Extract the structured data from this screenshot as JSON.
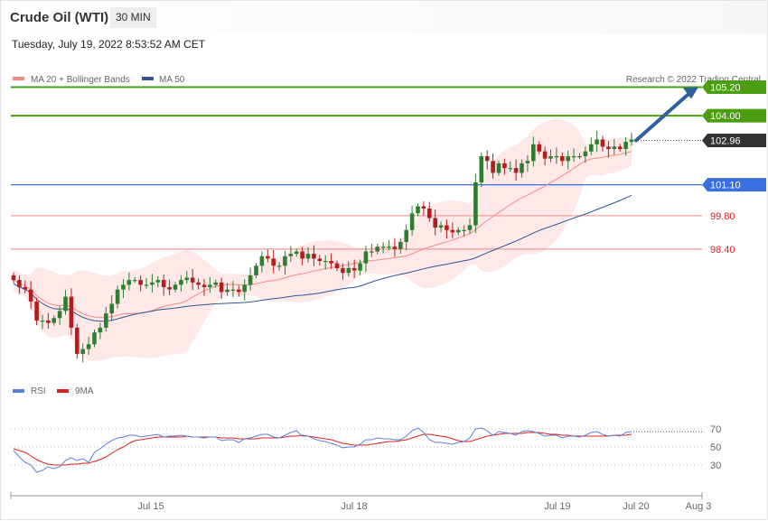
{
  "header": {
    "instrument": "Crude Oil (WTI)",
    "interval": "30 MIN",
    "timestamp": "Tuesday, July 19, 2022 8:53:52 AM CET"
  },
  "legend": {
    "ma20": {
      "label": "MA 20 + Bollinger Bands",
      "color": "#f28b82"
    },
    "ma50": {
      "label": "MA 50",
      "color": "#2f5597"
    },
    "credit": "Research © 2022 Trading Central"
  },
  "rsi_legend": {
    "rsi": {
      "label": "RSI",
      "color": "#5b7fd8"
    },
    "ma9": {
      "label": "9MA",
      "color": "#e02020"
    }
  },
  "colors": {
    "bull": "#2e7d32",
    "bear": "#b71c1c",
    "band_fill": "#fde0e0",
    "resistance": "#4a9e10",
    "pivot": "#3b6fe0",
    "support": "#f4a0a0",
    "last_price_bg": "#333333",
    "arrow": "#2f5f9e"
  },
  "chart_data": [
    {
      "type": "candlestick",
      "title": "Crude Oil (WTI)",
      "interval": "30 MIN",
      "x_axis": {
        "ticks": [
          "Jul 15",
          "Jul 18",
          "Jul 19",
          "Jul 20",
          "Aug 3"
        ]
      },
      "y_range": [
        93.2,
        105.9
      ],
      "levels": [
        {
          "label": "105.20",
          "value": 105.2,
          "kind": "resistance"
        },
        {
          "label": "104.00",
          "value": 104.0,
          "kind": "resistance"
        },
        {
          "label": "102.96",
          "value": 102.96,
          "kind": "last"
        },
        {
          "label": "101.10",
          "value": 101.1,
          "kind": "pivot"
        },
        {
          "label": "99.80",
          "value": 99.8,
          "kind": "support"
        },
        {
          "label": "98.40",
          "value": 98.4,
          "kind": "support"
        }
      ],
      "target_arrow": {
        "from": 102.96,
        "to": 105.2
      },
      "close": [
        97.1,
        96.8,
        96.7,
        96.2,
        95.4,
        95.4,
        95.3,
        95.5,
        95.8,
        96.4,
        95.1,
        94.0,
        94.2,
        94.4,
        94.9,
        95.1,
        95.7,
        96.1,
        96.7,
        96.9,
        97.1,
        97.1,
        96.9,
        96.9,
        97.0,
        97.1,
        96.8,
        96.7,
        96.9,
        97.1,
        97.2,
        97.0,
        96.9,
        96.8,
        96.9,
        97.0,
        96.6,
        96.7,
        96.7,
        96.6,
        96.9,
        97.3,
        97.7,
        98.1,
        98.0,
        97.7,
        97.7,
        98.1,
        98.2,
        98.3,
        98.0,
        98.2,
        98.0,
        97.9,
        97.9,
        97.8,
        97.6,
        97.4,
        97.6,
        97.5,
        97.8,
        98.3,
        98.3,
        98.5,
        98.5,
        98.5,
        98.4,
        98.7,
        99.2,
        99.9,
        100.2,
        100.1,
        99.7,
        99.3,
        99.4,
        99.2,
        99.1,
        99.2,
        99.2,
        99.4,
        101.2,
        102.3,
        102.1,
        101.6,
        102.0,
        101.8,
        101.8,
        101.6,
        102.0,
        102.1,
        102.8,
        102.5,
        102.2,
        102.3,
        102.3,
        102.1,
        102.3,
        102.3,
        102.3,
        102.5,
        102.8,
        103.0,
        102.7,
        102.6,
        102.7,
        102.6,
        102.9,
        103.0
      ]
    },
    {
      "type": "line",
      "title": "RSI",
      "y_ticks": [
        70,
        50,
        30
      ],
      "ylim": [
        0,
        100
      ],
      "series": [
        {
          "name": "RSI",
          "values": [
            46,
            39,
            33,
            30,
            22,
            24,
            28,
            26,
            28,
            35,
            38,
            35,
            37,
            33,
            44,
            48,
            53,
            57,
            60,
            61,
            63,
            63,
            61,
            62,
            63,
            64,
            61,
            62,
            62,
            63,
            62,
            61,
            61,
            60,
            61,
            61,
            57,
            58,
            58,
            55,
            59,
            60,
            62,
            64,
            64,
            61,
            60,
            63,
            66,
            68,
            62,
            62,
            59,
            57,
            56,
            54,
            52,
            49,
            50,
            50,
            53,
            58,
            58,
            60,
            59,
            59,
            58,
            58,
            62,
            68,
            71,
            66,
            58,
            55,
            55,
            54,
            53,
            55,
            56,
            60,
            70,
            71,
            68,
            63,
            67,
            66,
            65,
            63,
            67,
            68,
            67,
            65,
            62,
            63,
            63,
            60,
            62,
            62,
            61,
            63,
            66,
            67,
            64,
            62,
            63,
            62,
            66,
            67
          ]
        },
        {
          "name": "9MA",
          "values": [
            48,
            46,
            44,
            40,
            36,
            33,
            31,
            30,
            30,
            30,
            31,
            31,
            32,
            32,
            34,
            36,
            39,
            43,
            47,
            50,
            54,
            57,
            58,
            59,
            60,
            61,
            61,
            61,
            61,
            61,
            62,
            61,
            61,
            61,
            61,
            61,
            60,
            60,
            60,
            59,
            59,
            59,
            59,
            60,
            60,
            60,
            60,
            61,
            62,
            62,
            63,
            62,
            61,
            60,
            59,
            58,
            56,
            54,
            53,
            52,
            52,
            52,
            53,
            54,
            55,
            56,
            56,
            57,
            58,
            60,
            62,
            64,
            64,
            63,
            62,
            61,
            59,
            57,
            56,
            56,
            58,
            60,
            62,
            63,
            64,
            65,
            65,
            65,
            65,
            66,
            66,
            66,
            65,
            64,
            64,
            63,
            63,
            62,
            62,
            62,
            62,
            62,
            62,
            62,
            63,
            63,
            63,
            64
          ]
        }
      ]
    }
  ]
}
